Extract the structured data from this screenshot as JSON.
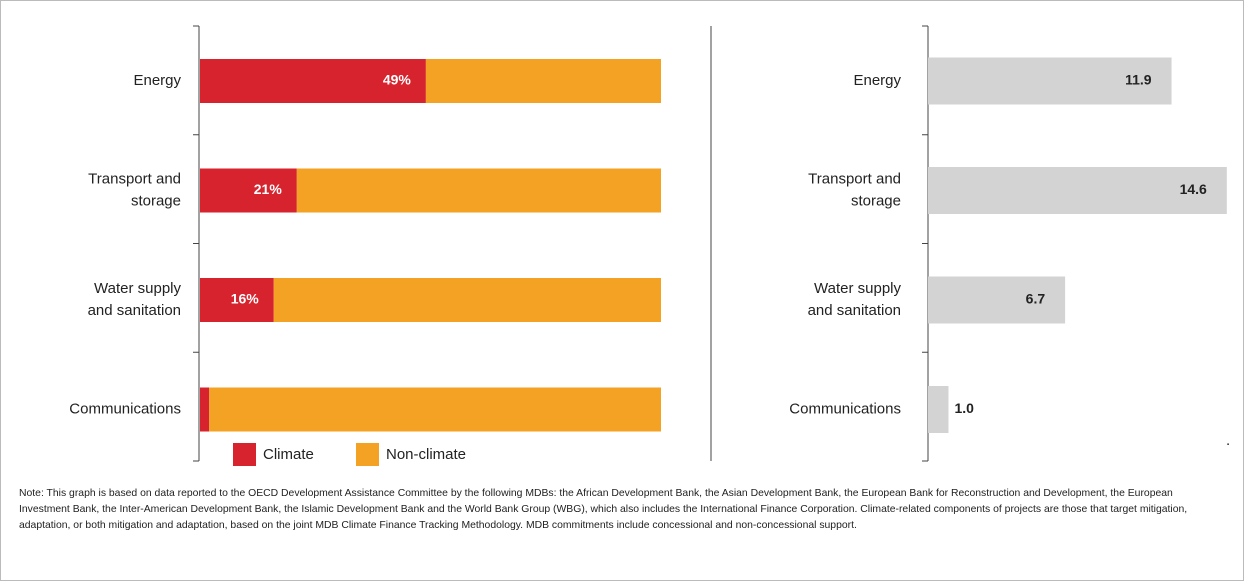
{
  "chart_data": [
    {
      "type": "stacked-bar-horizontal",
      "categories": [
        "Energy",
        "Transport and storage",
        "Water supply and sanitation",
        "Communications"
      ],
      "series": [
        {
          "name": "Climate",
          "color": "#d7232d",
          "values": [
            49,
            21,
            16,
            2
          ],
          "value_labels": [
            "49%",
            "21%",
            "16%",
            "2%"
          ]
        },
        {
          "name": "Non-climate",
          "color": "#f4a223",
          "values": [
            51,
            79,
            84,
            98
          ]
        }
      ],
      "xlim": [
        0,
        100
      ]
    },
    {
      "type": "bar-horizontal",
      "categories": [
        "Energy",
        "Transport and storage",
        "Water supply and sanitation",
        "Communications"
      ],
      "values": [
        11.9,
        14.6,
        6.7,
        1.0
      ],
      "value_labels": [
        "11.9",
        "14.6",
        "6.7",
        "1.0"
      ],
      "color": "#d3d3d3",
      "xlim": [
        0,
        15
      ]
    }
  ],
  "note": "Note: This graph is based on data reported to the OECD Development Assistance Committee by the following MDBs: the African Development Bank, the Asian Development Bank, the European Bank for Reconstruction and Development, the European Investment Bank, the Inter-American Development Bank, the Islamic Development Bank and the World Bank Group (WBG), which also includes the International Finance Corporation. Climate-related components of projects are those that target mitigation, adaptation, or both mitigation and adaptation, based on the joint MDB Climate Finance Tracking Methodology. MDB commitments include concessional and non-concessional support."
}
